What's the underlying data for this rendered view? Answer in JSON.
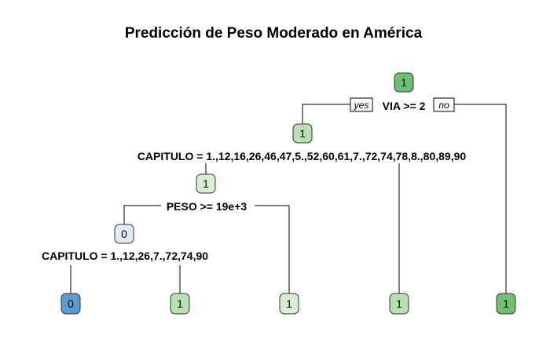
{
  "title": "Predicción de Peso Moderado en América",
  "branch_labels": {
    "yes": "yes",
    "no": "no"
  },
  "colors": {
    "class1_dark": "#6fbf73",
    "class1_mid": "#b9e0b2",
    "class1_light": "#d8eed2",
    "class0_light": "#e3ecf6",
    "class0_dark": "#5b9bd0"
  },
  "nodes": {
    "root": {
      "label": "1"
    },
    "via_yes": {
      "label": "1"
    },
    "cap1_in": {
      "label": "1"
    },
    "peso_yes": {
      "label": "0"
    },
    "leaf_a": {
      "label": "0"
    },
    "leaf_b": {
      "label": "1"
    },
    "leaf_c": {
      "label": "1"
    },
    "leaf_d": {
      "label": "1"
    },
    "leaf_e": {
      "label": "1"
    }
  },
  "splits": {
    "via": "VIA >= 2",
    "capitulo_1": "CAPITULO = 1.,12,16,26,46,47,5.,52,60,61,7.,72,74,78,8.,80,89,90",
    "peso": "PESO >= 19e+3",
    "capitulo_2": "CAPITULO = 1.,12,26,7.,72,74,90"
  }
}
